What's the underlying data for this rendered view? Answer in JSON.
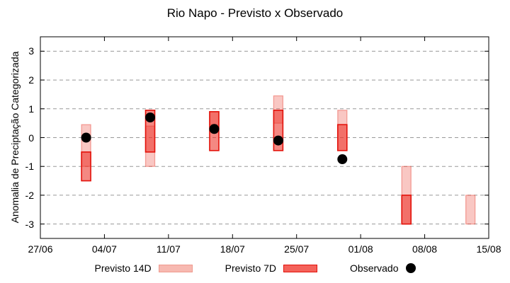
{
  "chart_data": {
    "type": "bar",
    "title": "Rio Napo - Previsto x Observado",
    "ylabel": "Anomalia de Preciptação Categorizada",
    "ylim": [
      -3.5,
      3.5
    ],
    "yticks": [
      3,
      2,
      1,
      0,
      -1,
      -2,
      -3
    ],
    "x_span_days": 49,
    "xticks": [
      {
        "label": "27/06",
        "day": 0
      },
      {
        "label": "04/07",
        "day": 7
      },
      {
        "label": "11/07",
        "day": 14
      },
      {
        "label": "18/07",
        "day": 21
      },
      {
        "label": "25/07",
        "day": 28
      },
      {
        "label": "01/08",
        "day": 35
      },
      {
        "label": "08/08",
        "day": 42
      },
      {
        "label": "15/08",
        "day": 49
      }
    ],
    "grid": true,
    "legend_position": "bottom",
    "groups": [
      {
        "day": 5,
        "previsto_14d": [
          0.45,
          -1.0
        ],
        "previsto_7d": [
          -0.5,
          -1.5
        ],
        "observado": 0.0
      },
      {
        "day": 12,
        "previsto_14d": [
          0.4,
          -1.0
        ],
        "previsto_7d": [
          0.95,
          -0.5
        ],
        "observado": 0.7
      },
      {
        "day": 19,
        "previsto_14d": [
          0.9,
          0.45
        ],
        "previsto_7d": [
          0.9,
          -0.45
        ],
        "observado": 0.3
      },
      {
        "day": 26,
        "previsto_14d": [
          1.45,
          0.5
        ],
        "previsto_7d": [
          0.95,
          -0.45
        ],
        "observado": -0.1
      },
      {
        "day": 33,
        "previsto_14d": [
          0.95,
          -0.45
        ],
        "previsto_7d": [
          0.45,
          -0.45
        ],
        "observado": -0.75
      },
      {
        "day": 40,
        "previsto_14d": [
          -1.0,
          -3.0
        ],
        "previsto_7d": [
          -2.0,
          -3.0
        ],
        "observado": null
      },
      {
        "day": 47,
        "previsto_14d": [
          -2.0,
          -3.0
        ],
        "previsto_7d": null,
        "observado": null
      }
    ],
    "legend": [
      {
        "label": "Previsto 14D",
        "swatch": "box",
        "fill": "#f7b9b1",
        "stroke": "#ef9a8e"
      },
      {
        "label": "Previsto 7D",
        "swatch": "box",
        "fill": "#f4625a",
        "stroke": "#e3120b"
      },
      {
        "label": "Observado",
        "swatch": "dot",
        "fill": "#000000"
      }
    ],
    "colors": {
      "p14_fill": "rgba(236,68,56,0.30)",
      "p14_stroke": "rgba(233,70,58,0.45)",
      "p7_fill": "rgba(236,50,40,0.58)",
      "p7_stroke": "#e3120b",
      "observado": "#000000",
      "grid": "#999999",
      "axis": "#000000"
    }
  }
}
